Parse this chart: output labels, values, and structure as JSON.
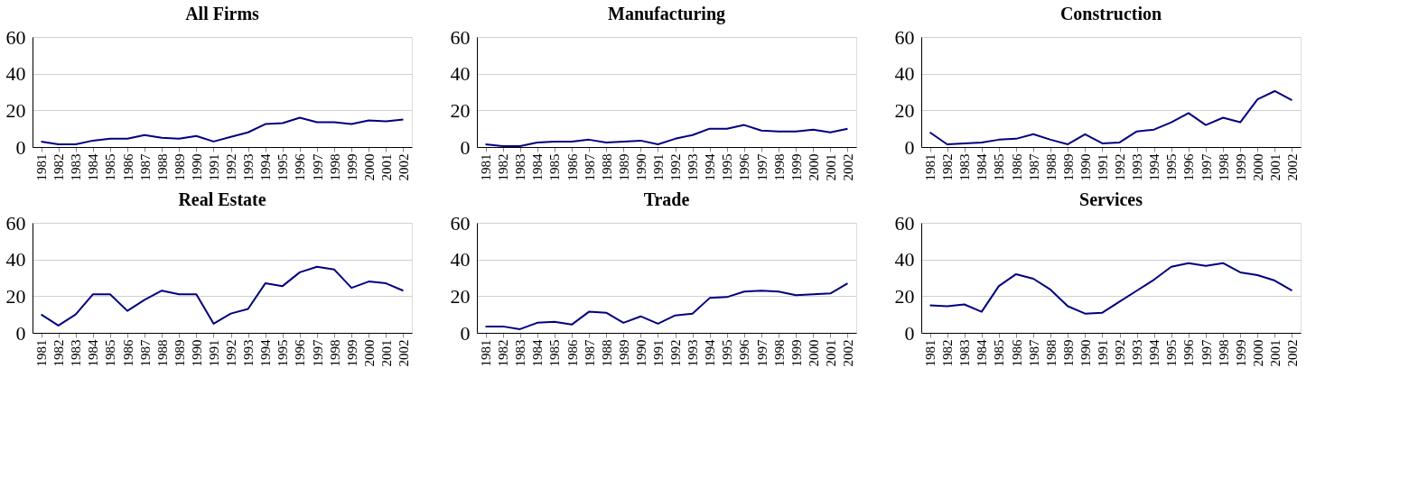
{
  "chart_data": [
    {
      "type": "line",
      "title": "All Firms",
      "categories": [
        "1981",
        "1982",
        "1983",
        "1984",
        "1985",
        "1986",
        "1987",
        "1988",
        "1989",
        "1990",
        "1991",
        "1992",
        "1993",
        "1994",
        "1995",
        "1996",
        "1997",
        "1998",
        "1999",
        "2000",
        "2001",
        "2002"
      ],
      "color": "#000080",
      "ylim": [
        0,
        60
      ],
      "yticks": [
        0,
        20,
        40,
        60
      ],
      "grid": "y",
      "values": [
        3,
        1.5,
        1.5,
        3.5,
        4.5,
        4.5,
        6.5,
        5,
        4.5,
        6,
        3,
        5.5,
        8,
        12.5,
        13,
        16,
        13.5,
        13.5,
        12.5,
        14.5,
        14,
        15
      ]
    },
    {
      "type": "line",
      "title": "Manufacturing",
      "categories": [
        "1981",
        "1982",
        "1983",
        "1984",
        "1985",
        "1986",
        "1987",
        "1988",
        "1989",
        "1990",
        "1991",
        "1992",
        "1993",
        "1994",
        "1995",
        "1996",
        "1997",
        "1998",
        "1999",
        "2000",
        "2001",
        "2002"
      ],
      "color": "#000080",
      "ylim": [
        0,
        60
      ],
      "yticks": [
        0,
        20,
        40,
        60
      ],
      "grid": "y",
      "values": [
        1.5,
        0.5,
        0.5,
        2.5,
        3,
        3,
        4,
        2.5,
        3,
        3.5,
        1.5,
        4.5,
        6.5,
        10,
        10,
        12,
        9,
        8.5,
        8.5,
        9.5,
        8,
        10
      ]
    },
    {
      "type": "line",
      "title": "Construction",
      "categories": [
        "1981",
        "1982",
        "1983",
        "1984",
        "1985",
        "1986",
        "1987",
        "1988",
        "1989",
        "1990",
        "1991",
        "1992",
        "1993",
        "1994",
        "1995",
        "1996",
        "1997",
        "1998",
        "1999",
        "2000",
        "2001",
        "2002"
      ],
      "color": "#000080",
      "ylim": [
        0,
        60
      ],
      "yticks": [
        0,
        20,
        40,
        60
      ],
      "grid": "y",
      "values": [
        8,
        1.5,
        2,
        2.5,
        4,
        4.5,
        7,
        4,
        1.5,
        7,
        2,
        2.5,
        8.5,
        9.5,
        13.5,
        18.5,
        12,
        16,
        13.5,
        26,
        30.5,
        25.5
      ]
    },
    {
      "type": "line",
      "title": "Real Estate",
      "categories": [
        "1981",
        "1982",
        "1983",
        "1984",
        "1985",
        "1986",
        "1987",
        "1988",
        "1989",
        "1990",
        "1991",
        "1992",
        "1993",
        "1994",
        "1995",
        "1996",
        "1997",
        "1998",
        "1999",
        "2000",
        "2001",
        "2002"
      ],
      "color": "#000080",
      "ylim": [
        0,
        60
      ],
      "yticks": [
        0,
        20,
        40,
        60
      ],
      "grid": "y",
      "values": [
        10,
        4,
        10,
        21,
        21,
        12,
        18,
        23,
        21,
        21,
        5,
        10.5,
        13,
        27,
        25.5,
        33,
        36,
        34.5,
        24.5,
        28,
        27,
        23
      ]
    },
    {
      "type": "line",
      "title": "Trade",
      "categories": [
        "1981",
        "1982",
        "1983",
        "1984",
        "1985",
        "1986",
        "1987",
        "1988",
        "1989",
        "1990",
        "1991",
        "1992",
        "1993",
        "1994",
        "1995",
        "1996",
        "1997",
        "1998",
        "1999",
        "2000",
        "2001",
        "2002"
      ],
      "color": "#000080",
      "ylim": [
        0,
        60
      ],
      "yticks": [
        0,
        20,
        40,
        60
      ],
      "grid": "y",
      "values": [
        3.5,
        3.5,
        2,
        5.5,
        6,
        4.5,
        11.5,
        11,
        5.5,
        9,
        5,
        9.5,
        10.5,
        19,
        19.5,
        22.5,
        23,
        22.5,
        20.5,
        21,
        21.5,
        27
      ]
    },
    {
      "type": "line",
      "title": "Services",
      "categories": [
        "1981",
        "1982",
        "1983",
        "1984",
        "1985",
        "1986",
        "1987",
        "1988",
        "1989",
        "1990",
        "1991",
        "1992",
        "1993",
        "1994",
        "1995",
        "1996",
        "1997",
        "1998",
        "1999",
        "2000",
        "2001",
        "2002"
      ],
      "color": "#000080",
      "ylim": [
        0,
        60
      ],
      "yticks": [
        0,
        20,
        40,
        60
      ],
      "grid": "y",
      "values": [
        15,
        14.5,
        15.5,
        11.5,
        25.5,
        32,
        29.5,
        23.5,
        14.5,
        10.5,
        11,
        17,
        23,
        29,
        36,
        38,
        36.5,
        38,
        33,
        31.5,
        28.5,
        23
      ]
    }
  ]
}
